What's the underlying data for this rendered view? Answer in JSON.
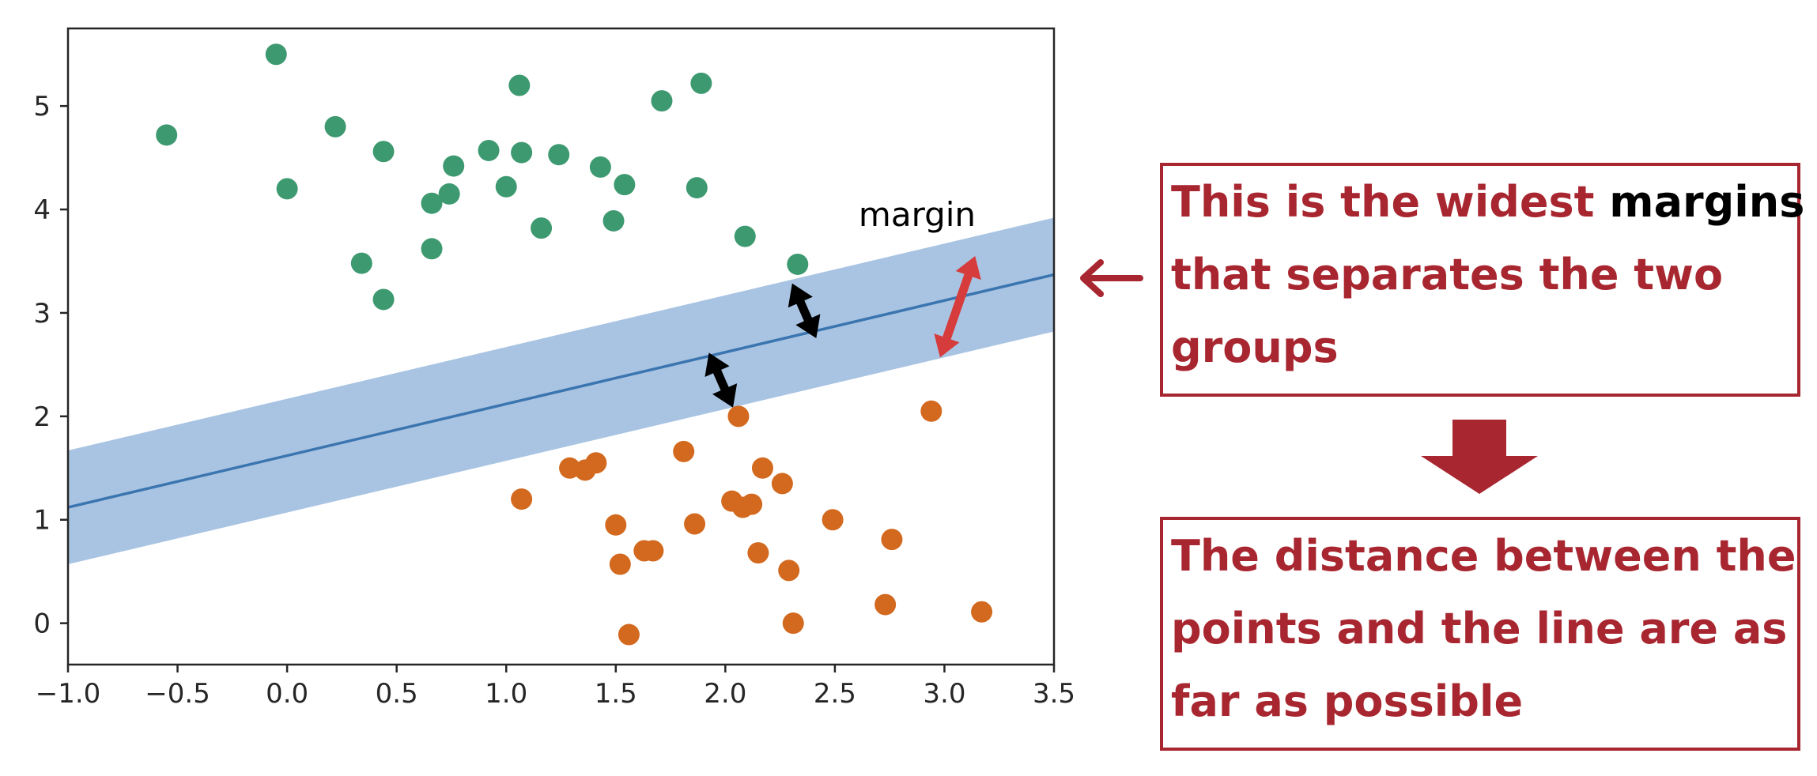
{
  "chart_data": {
    "type": "scatter",
    "title": "",
    "xlabel": "",
    "ylabel": "",
    "xlim": [
      -1.0,
      3.5
    ],
    "ylim": [
      -0.4,
      5.75
    ],
    "xticks": [
      "-1.0",
      "-0.5",
      "0.0",
      "0.5",
      "1.0",
      "1.5",
      "2.0",
      "2.5",
      "3.0",
      "3.5"
    ],
    "yticks": [
      "0",
      "1",
      "2",
      "3",
      "4",
      "5"
    ],
    "grid": false,
    "series": [
      {
        "color": "#3d9970",
        "points": [
          [
            -0.05,
            5.5
          ],
          [
            -0.55,
            4.72
          ],
          [
            0.0,
            4.2
          ],
          [
            0.22,
            4.8
          ],
          [
            0.44,
            4.56
          ],
          [
            0.34,
            3.48
          ],
          [
            0.44,
            3.13
          ],
          [
            0.66,
            4.06
          ],
          [
            0.66,
            3.62
          ],
          [
            0.74,
            4.15
          ],
          [
            0.76,
            4.42
          ],
          [
            0.92,
            4.57
          ],
          [
            1.0,
            4.22
          ],
          [
            1.06,
            5.2
          ],
          [
            1.07,
            4.55
          ],
          [
            1.16,
            3.82
          ],
          [
            1.24,
            4.53
          ],
          [
            1.43,
            4.41
          ],
          [
            1.49,
            3.89
          ],
          [
            1.54,
            4.24
          ],
          [
            1.71,
            5.05
          ],
          [
            1.87,
            4.21
          ],
          [
            1.89,
            5.22
          ],
          [
            2.09,
            3.74
          ],
          [
            2.33,
            3.47
          ]
        ]
      },
      {
        "color": "#d2691e",
        "points": [
          [
            2.06,
            2.0
          ],
          [
            2.94,
            2.05
          ],
          [
            1.81,
            1.66
          ],
          [
            1.29,
            1.5
          ],
          [
            1.36,
            1.48
          ],
          [
            1.41,
            1.55
          ],
          [
            2.17,
            1.5
          ],
          [
            2.26,
            1.35
          ],
          [
            1.07,
            1.2
          ],
          [
            2.03,
            1.18
          ],
          [
            2.08,
            1.12
          ],
          [
            2.12,
            1.15
          ],
          [
            1.5,
            0.95
          ],
          [
            1.86,
            0.96
          ],
          [
            2.49,
            1.0
          ],
          [
            2.76,
            0.81
          ],
          [
            1.63,
            0.7
          ],
          [
            1.67,
            0.7
          ],
          [
            2.15,
            0.68
          ],
          [
            1.52,
            0.57
          ],
          [
            2.29,
            0.51
          ],
          [
            2.73,
            0.18
          ],
          [
            3.17,
            0.11
          ],
          [
            2.31,
            0.0
          ],
          [
            1.56,
            -0.11
          ]
        ]
      }
    ],
    "line": {
      "slope": 0.5,
      "intercept": 1.62,
      "margin": 0.55,
      "color": "#3b75b0",
      "band_color": "#a9c4e2"
    },
    "annotations": {
      "margin_label": "margin",
      "black_arrows": [
        {
          "x": 2.36,
          "y": 3.02,
          "dx": 0.11,
          "dy": -0.53
        },
        {
          "x": 1.98,
          "y": 2.35,
          "dx": -0.11,
          "dy": 0.53
        }
      ],
      "red_arrow": {
        "x": 3.06,
        "y": 3.06,
        "dx": 0.16,
        "dy": 0.98,
        "color": "#d63c3c"
      }
    }
  },
  "notes": {
    "box1": {
      "line1_pre": "This is the widest ",
      "line1_em": "margins",
      "line2": "that separates the two",
      "line3": "groups"
    },
    "box2": {
      "line1": "The distance between the",
      "line2": "points and the line are as",
      "line3": "far as possible"
    },
    "color": "#a8262f"
  }
}
